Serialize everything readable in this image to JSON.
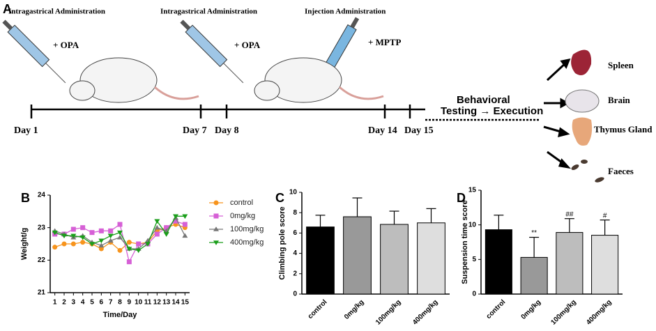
{
  "panel_labels": [
    "A",
    "B",
    "C",
    "D"
  ],
  "timeline": {
    "steps": [
      {
        "label": "Intragastrical Administration",
        "agent": "+ OPA"
      },
      {
        "label": "Intragastrical Administration",
        "agent": "+ OPA"
      },
      {
        "label": "Injection Administration",
        "agent": "+ MPTP"
      }
    ],
    "days": [
      "Day 1",
      "Day 7",
      "Day 8",
      "Day 14",
      "Day 15"
    ],
    "behavior": [
      "Behavioral",
      "Testing → Execution"
    ],
    "organs": [
      "Spleen",
      "Brain",
      "Thymus Gland",
      "Faeces"
    ]
  },
  "chart_data": [
    {
      "type": "line",
      "xlabel": "Time/Day",
      "ylabel": "Weight/g",
      "x": [
        1,
        2,
        3,
        4,
        5,
        6,
        7,
        8,
        9,
        10,
        11,
        12,
        13,
        14,
        15
      ],
      "xlim": [
        0.5,
        15.5
      ],
      "xticks": [
        1,
        2,
        3,
        4,
        5,
        6,
        7,
        8,
        9,
        10,
        11,
        12,
        13,
        14,
        15
      ],
      "ylim": [
        21,
        24
      ],
      "yticks": [
        21,
        22,
        23,
        24
      ],
      "legend": "right",
      "series": [
        {
          "name": "control",
          "color": "#f7941d",
          "marker": "circle",
          "values": [
            22.4,
            22.5,
            22.5,
            22.55,
            22.5,
            22.35,
            22.55,
            22.3,
            22.55,
            22.5,
            22.55,
            22.9,
            23.0,
            23.1,
            23.0
          ]
        },
        {
          "name": "0mg/kg",
          "color": "#d660d6",
          "marker": "square",
          "values": [
            22.8,
            22.8,
            22.95,
            23.0,
            22.85,
            22.9,
            22.9,
            23.1,
            21.95,
            22.5,
            22.5,
            22.8,
            23.0,
            23.2,
            23.1
          ]
        },
        {
          "name": "100mg/kg",
          "color": "#777777",
          "marker": "triangle-up",
          "values": [
            22.9,
            22.8,
            22.7,
            22.75,
            22.55,
            22.45,
            22.6,
            22.7,
            22.35,
            22.35,
            22.6,
            23.0,
            22.9,
            23.3,
            22.75
          ]
        },
        {
          "name": "400mg/kg",
          "color": "#1a9e1a",
          "marker": "triangle-down",
          "values": [
            22.85,
            22.75,
            22.75,
            22.7,
            22.5,
            22.6,
            22.75,
            22.85,
            22.35,
            22.3,
            22.5,
            23.2,
            22.8,
            23.35,
            23.35
          ]
        }
      ]
    },
    {
      "type": "bar",
      "ylabel": "Climbing pole score",
      "categories": [
        "control",
        "0mg/kg",
        "100mg/kg",
        "400mg/kg"
      ],
      "values": [
        6.6,
        7.6,
        6.85,
        7.0
      ],
      "errors": [
        1.15,
        1.85,
        1.3,
        1.4
      ],
      "colors": [
        "#000000",
        "#999999",
        "#bdbdbd",
        "#dedede"
      ],
      "ylim": [
        0,
        10
      ],
      "yticks": [
        0,
        2,
        4,
        6,
        8,
        10
      ]
    },
    {
      "type": "bar",
      "ylabel": "Suspension time score",
      "categories": [
        "control",
        "0mg/kg",
        "100mg/kg",
        "400mg/kg"
      ],
      "values": [
        9.3,
        5.3,
        8.9,
        8.5
      ],
      "errors": [
        2.1,
        2.9,
        2.0,
        2.2
      ],
      "annotations": [
        null,
        "**",
        "##",
        "#"
      ],
      "colors": [
        "#000000",
        "#999999",
        "#bdbdbd",
        "#dedede"
      ],
      "ylim": [
        0,
        15
      ],
      "yticks": [
        0,
        5,
        10,
        15
      ]
    }
  ]
}
